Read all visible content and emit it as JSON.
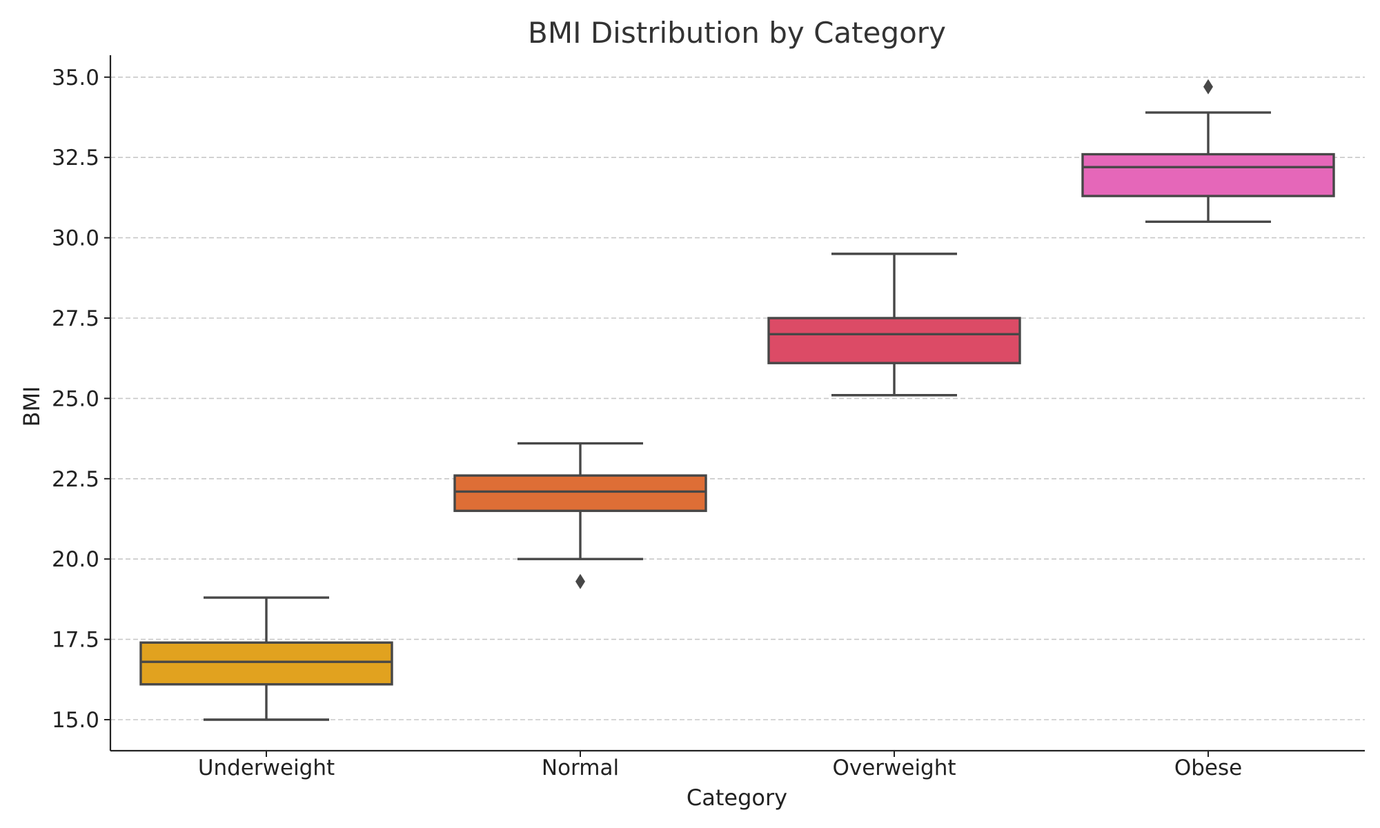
{
  "chart_data": {
    "type": "box",
    "title": "BMI Distribution by Category",
    "xlabel": "Category",
    "ylabel": "BMI",
    "ylim": [
      14.0,
      35.7
    ],
    "yticks": [
      15.0,
      17.5,
      20.0,
      22.5,
      25.0,
      27.5,
      30.0,
      32.5,
      35.0
    ],
    "ytick_labels": [
      "15.0",
      "17.5",
      "20.0",
      "22.5",
      "25.0",
      "27.5",
      "30.0",
      "32.5",
      "35.0"
    ],
    "grid": "horizontal dashed",
    "categories": [
      "Underweight",
      "Normal",
      "Overweight",
      "Obese"
    ],
    "boxes": [
      {
        "category": "Underweight",
        "whisker_low": 15.0,
        "q1": 16.1,
        "median": 16.8,
        "q3": 17.4,
        "whisker_high": 18.8,
        "outliers": [],
        "color": "#E1A21F"
      },
      {
        "category": "Normal",
        "whisker_low": 20.0,
        "q1": 21.5,
        "median": 22.1,
        "q3": 22.6,
        "whisker_high": 23.6,
        "outliers": [
          19.3
        ],
        "color": "#DE6E36"
      },
      {
        "category": "Overweight",
        "whisker_low": 25.1,
        "q1": 26.1,
        "median": 27.0,
        "q3": 27.5,
        "whisker_high": 29.5,
        "outliers": [],
        "color": "#DC4B66"
      },
      {
        "category": "Obese",
        "whisker_low": 30.5,
        "q1": 31.3,
        "median": 32.2,
        "q3": 32.6,
        "whisker_high": 33.9,
        "outliers": [
          34.7
        ],
        "color": "#E567B9"
      }
    ]
  }
}
